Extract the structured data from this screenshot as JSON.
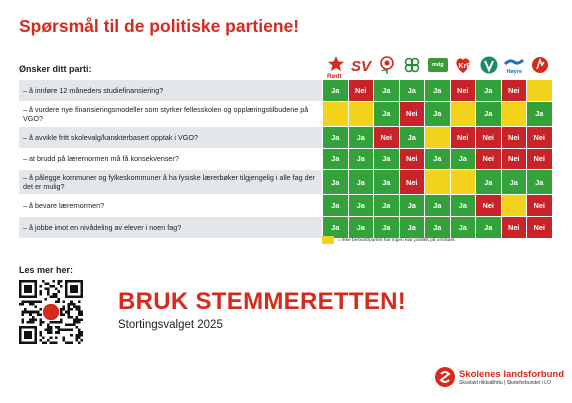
{
  "title": "Spørsmål til de politiske partiene!",
  "subtitle": "Ønsker ditt parti:",
  "parties": [
    {
      "id": "rodt",
      "label": "Rødt",
      "icon": "star-icon",
      "color": "#d52b1e"
    },
    {
      "id": "sv",
      "label": "SV",
      "icon": "sv-logo",
      "color": "#d52b1e"
    },
    {
      "id": "ap",
      "label": "",
      "icon": "rose-icon",
      "color": "#d52b1e"
    },
    {
      "id": "sp",
      "label": "",
      "icon": "clover-icon",
      "color": "#2a8a3a"
    },
    {
      "id": "mdg",
      "label": "mdg",
      "icon": "mdg-logo",
      "color": "#3a9a3a"
    },
    {
      "id": "krf",
      "label": "",
      "icon": "krf-logo",
      "color": "#d52b1e"
    },
    {
      "id": "v",
      "label": "",
      "icon": "venstre-logo",
      "color": "#1c8a6a"
    },
    {
      "id": "h",
      "label": "Høyre",
      "icon": "hoyre-logo",
      "color": "#1f6fb5"
    },
    {
      "id": "frp",
      "label": "",
      "icon": "frp-logo",
      "color": "#d52b1e"
    }
  ],
  "rows": [
    {
      "question": "– å innføre 12 måneders studiefinansiering?",
      "answers": [
        "Ja",
        "Nei",
        "Ja",
        "Ja",
        "Ja",
        "Nei",
        "Ja",
        "Nei",
        ""
      ]
    },
    {
      "question": "– å vurdere nye finansieringsmodeller som styrker fellesskolen og opplæringstilbudene på VGO?",
      "answers": [
        "",
        "",
        "Ja",
        "Nei",
        "Ja",
        "",
        "Ja",
        "",
        "Ja"
      ]
    },
    {
      "question": "– å avvikle fritt skolevalg/karakterbasert opptak i VGO?",
      "answers": [
        "Ja",
        "Ja",
        "Nei",
        "Ja",
        "",
        "Nei",
        "Nei",
        "Nei",
        "Nei"
      ]
    },
    {
      "question": "– at brudd på lærernormen må få konsekvenser?",
      "answers": [
        "Ja",
        "Ja",
        "Ja",
        "Nei",
        "Ja",
        "Ja",
        "Nei",
        "Nei",
        "Nei"
      ]
    },
    {
      "question": "– å pålegge kommuner og fylkeskommuner å ha fysiske lærerbøker tilgjengelig i alle fag der det er mulig?",
      "answers": [
        "Ja",
        "Ja",
        "Ja",
        "Nei",
        "",
        "",
        "Ja",
        "Ja",
        "Ja"
      ]
    },
    {
      "question": "– å bevare lærernormen?",
      "answers": [
        "Ja",
        "Ja",
        "Ja",
        "Ja",
        "Ja",
        "Ja",
        "Nei",
        "",
        "Nei"
      ]
    },
    {
      "question": "– å jobbe imot en nivådeling av elever i noen fag?",
      "answers": [
        "Ja",
        "Ja",
        "Ja",
        "Ja",
        "Ja",
        "Ja",
        "Ja",
        "Nei",
        "Nei"
      ]
    }
  ],
  "legend": "= ikke besvart/partiet har ingen klar politikk på området.",
  "read_more": "Les mer her:",
  "cta": "BRUK STEMMERETTEN!",
  "cta_sub": "Stortingsvalget 2025",
  "org": {
    "name": "Skolenes landsforbund",
    "sub": "Skuvlaid riikkaliihttu | Skoleforbundet i LO"
  },
  "colors": {
    "ja": "#34a23a",
    "nei": "#c9232a",
    "blank": "#f2d21b",
    "brand": "#d52b1e"
  }
}
